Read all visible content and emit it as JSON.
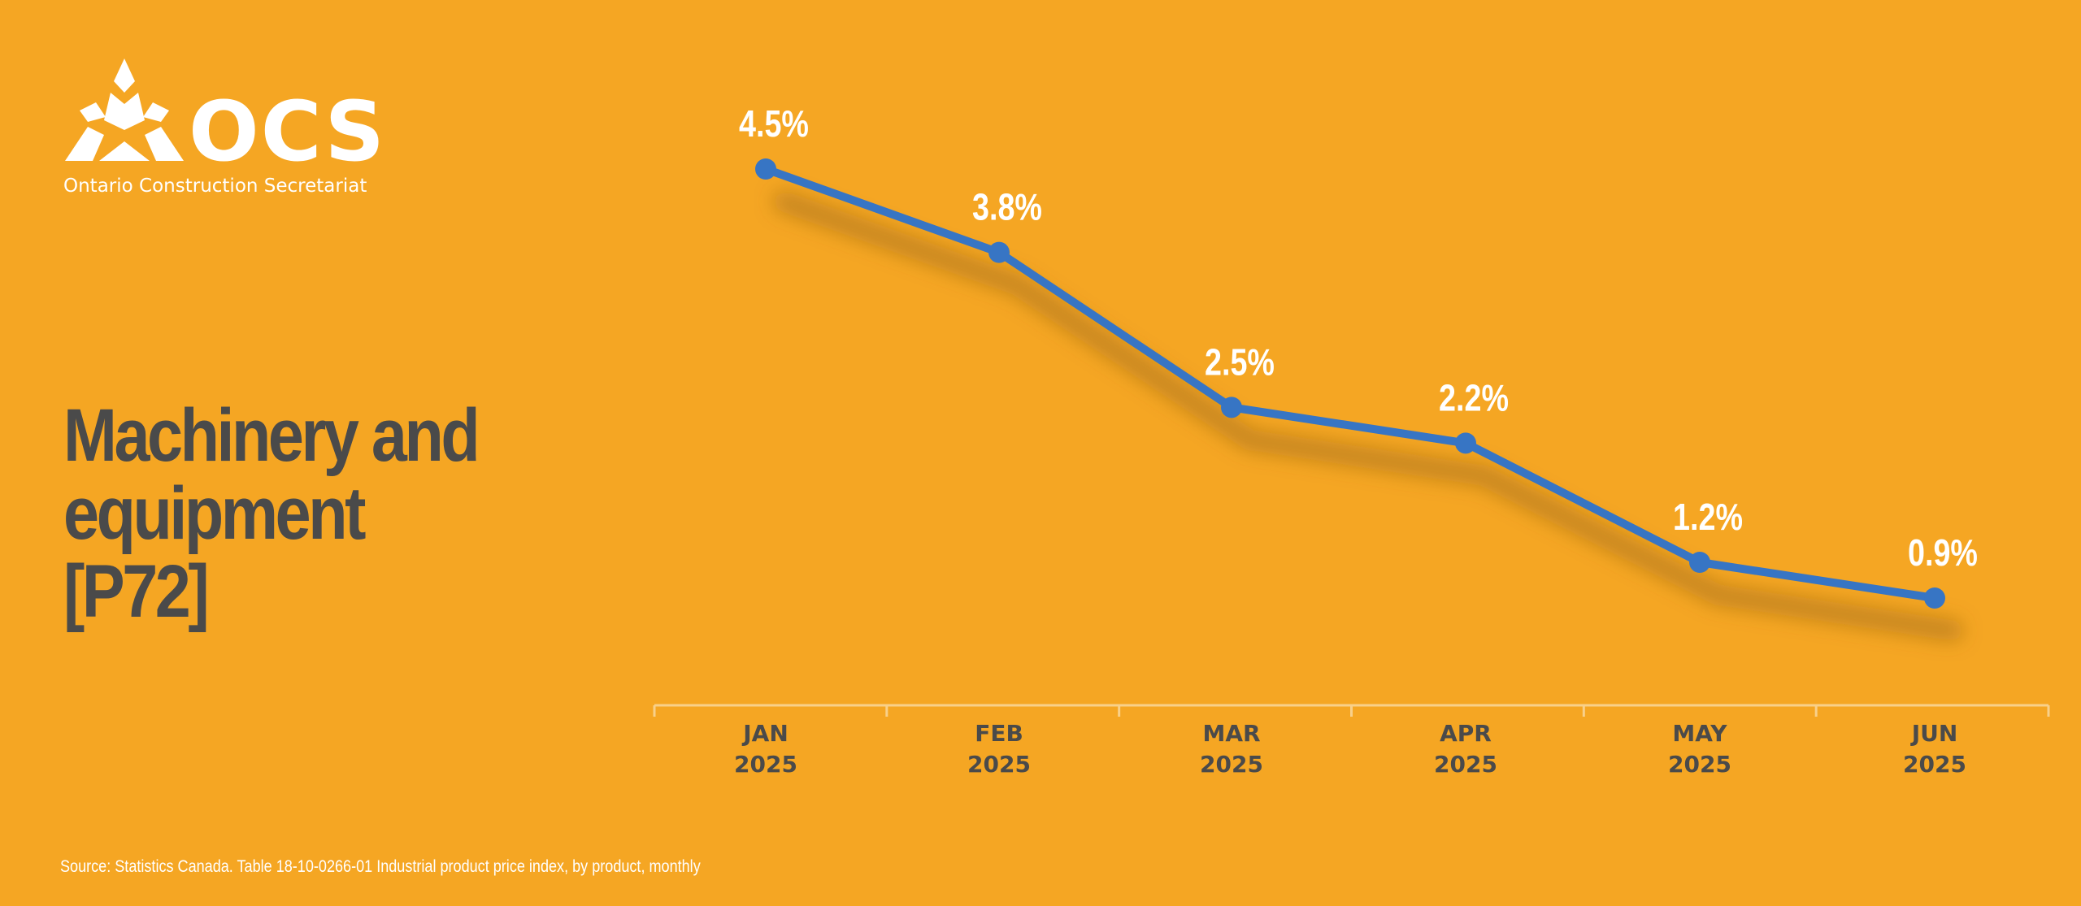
{
  "logo": {
    "wordmark": "OCS",
    "name": "Ontario Construction Secretariat"
  },
  "title": "Machinery and equipment [P72]",
  "source": "Source: Statistics Canada. Table 18-10-0266-01  Industrial product price index, by product, monthly",
  "colors": {
    "background": "#f5a623",
    "line": "#3775c4",
    "title": "#4a4a4a",
    "axis_labels": "#4a4a4a",
    "value_labels": "#ffffff",
    "axis": "#f8d08a"
  },
  "chart_data": {
    "type": "line",
    "categories": [
      "JAN 2025",
      "FEB 2025",
      "MAR 2025",
      "APR 2025",
      "MAY 2025",
      "JUN 2025"
    ],
    "category_lines": [
      [
        "JAN",
        "2025"
      ],
      [
        "FEB",
        "2025"
      ],
      [
        "MAR",
        "2025"
      ],
      [
        "APR",
        "2025"
      ],
      [
        "MAY",
        "2025"
      ],
      [
        "JUN",
        "2025"
      ]
    ],
    "values": [
      4.5,
      3.8,
      2.5,
      2.2,
      1.2,
      0.9
    ],
    "labels": [
      "4.5%",
      "3.8%",
      "2.5%",
      "2.2%",
      "1.2%",
      "0.9%"
    ],
    "unit": "%",
    "ylim": [
      0,
      5
    ],
    "grid": false,
    "legend": "none"
  }
}
